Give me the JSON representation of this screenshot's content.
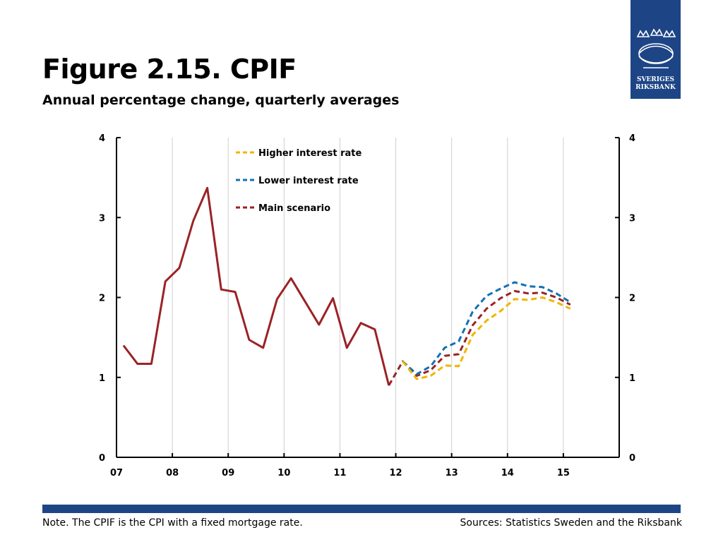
{
  "header": {
    "title": "Figure 2.15. CPIF",
    "subtitle": "Annual percentage change, quarterly averages"
  },
  "logo": {
    "line1": "SVERIGES",
    "line2": "RIKSBANK",
    "color": "#1d4586"
  },
  "footer": {
    "note": "Note. The CPIF is the CPI with a fixed mortgage rate.",
    "sources": "Sources: Statistics Sweden and the Riksbank"
  },
  "chart_data": {
    "type": "line",
    "title": "Figure 2.15. CPIF",
    "subtitle": "Annual percentage change, quarterly averages",
    "xlabel": "",
    "ylabel": "",
    "x_tick_labels": [
      "07",
      "08",
      "09",
      "10",
      "11",
      "12",
      "13",
      "14",
      "15"
    ],
    "x_range": [
      2007.0,
      2016.0
    ],
    "ylim": [
      0,
      4
    ],
    "y_ticks": [
      0,
      1,
      2,
      3,
      4
    ],
    "y_tick_labels": [
      "0",
      "1",
      "2",
      "3",
      "4"
    ],
    "right_axis": true,
    "grid": "vertical",
    "legend_position": "top-center",
    "series": [
      {
        "name": "Main scenario",
        "color": "#9b2226",
        "x": [
          2007.125,
          2007.375,
          2007.625,
          2007.875,
          2008.125,
          2008.375,
          2008.625,
          2008.875,
          2009.125,
          2009.375,
          2009.625,
          2009.875,
          2010.125,
          2010.375,
          2010.625,
          2010.875,
          2011.125,
          2011.375,
          2011.625,
          2011.875
        ],
        "values": [
          1.4,
          1.17,
          1.17,
          2.2,
          2.37,
          2.96,
          3.37,
          2.1,
          2.07,
          1.47,
          1.37,
          1.98,
          2.24,
          1.95,
          1.66,
          1.99,
          1.37,
          1.68,
          1.6,
          0.9
        ],
        "style": "solid"
      },
      {
        "name": "Main scenario",
        "color": "#9b2226",
        "x": [
          2011.875,
          2012.125,
          2012.375,
          2012.625,
          2012.875,
          2013.125,
          2013.375,
          2013.625,
          2013.875,
          2014.125,
          2014.375,
          2014.625,
          2014.875,
          2015.125
        ],
        "values": [
          0.9,
          1.2,
          1.02,
          1.09,
          1.27,
          1.29,
          1.65,
          1.86,
          1.99,
          2.08,
          2.05,
          2.06,
          2.0,
          1.91
        ],
        "style": "dashed"
      },
      {
        "name": "Lower interest rate",
        "color": "#1370b3",
        "x": [
          2012.125,
          2012.375,
          2012.625,
          2012.875,
          2013.125,
          2013.375,
          2013.625,
          2013.875,
          2014.125,
          2014.375,
          2014.625,
          2014.875,
          2015.125
        ],
        "values": [
          1.2,
          1.04,
          1.14,
          1.37,
          1.45,
          1.82,
          2.02,
          2.11,
          2.19,
          2.14,
          2.13,
          2.05,
          1.94
        ],
        "style": "dashed"
      },
      {
        "name": "Higher interest rate",
        "color": "#f0b400",
        "x": [
          2012.125,
          2012.375,
          2012.625,
          2012.875,
          2013.125,
          2013.375,
          2013.625,
          2013.875,
          2014.125,
          2014.375,
          2014.625,
          2014.875,
          2015.125
        ],
        "values": [
          1.2,
          0.98,
          1.02,
          1.15,
          1.14,
          1.53,
          1.71,
          1.83,
          1.98,
          1.97,
          2.0,
          1.94,
          1.86
        ],
        "style": "dashed"
      }
    ],
    "legend": [
      {
        "label": "Higher interest rate",
        "color": "#f0b400"
      },
      {
        "label": "Lower interest rate",
        "color": "#1370b3"
      },
      {
        "label": "Main scenario",
        "color": "#9b2226"
      }
    ]
  }
}
